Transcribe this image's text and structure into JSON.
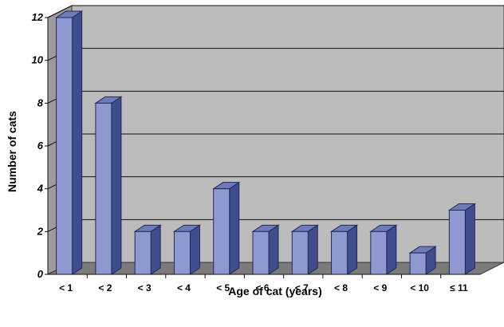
{
  "chart_data": {
    "type": "bar",
    "categories": [
      "< 1",
      "< 2",
      "< 3",
      "< 4",
      "< 5",
      "< 6",
      "< 7",
      "< 8",
      "< 9",
      "< 10",
      "≤ 11"
    ],
    "values": [
      12,
      8,
      2,
      2,
      4,
      2,
      2,
      2,
      2,
      1,
      3
    ],
    "xlabel": "Age of cat (years)",
    "ylabel": "Number of cats",
    "ylim": [
      0,
      12
    ],
    "yticks": [
      0,
      2,
      4,
      6,
      8,
      10,
      12
    ],
    "grid": true,
    "style": "3d",
    "colors": {
      "bar_front": "#8f99cf",
      "bar_side": "#3f4d8f",
      "bar_top": "#6f7ab8",
      "bar_outline": "#1f2a55",
      "back_wall": "#bcbcbc",
      "side_wall": "#9b9b9b",
      "floor": "#7b7b7b",
      "gridline": "#111111"
    }
  }
}
